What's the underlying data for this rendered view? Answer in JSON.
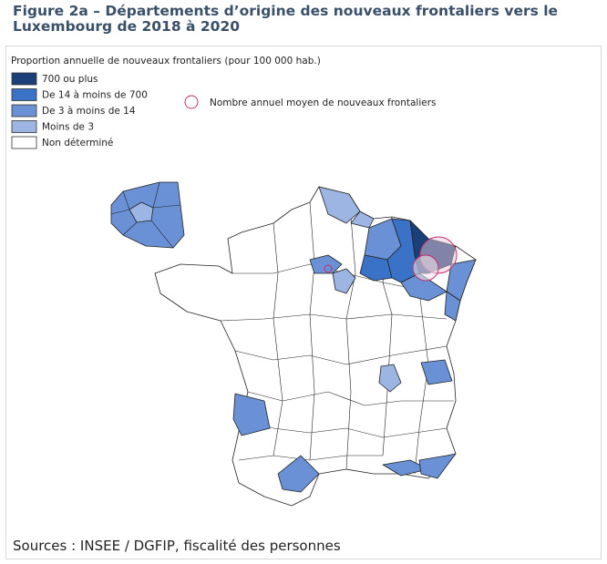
{
  "header": {
    "title": "Figure 2a – Départements d’origine des nouveaux frontaliers vers le Luxembourg de 2018 à 2020"
  },
  "legend": {
    "title": "Proportion annuelle de nouveaux frontaliers (pour 100 000 hab.)",
    "items": [
      {
        "label": "700 ou plus",
        "color": "#1b3f78"
      },
      {
        "label": "De 14 à moins de 700",
        "color": "#3a72c8"
      },
      {
        "label": "De 3 à moins de 14",
        "color": "#6a91d6"
      },
      {
        "label": "Moins de 3",
        "color": "#9cb5e2"
      },
      {
        "label": "Non déterminé",
        "color": "#ffffff"
      }
    ],
    "circle_label": "Nombre annuel moyen de nouveaux frontaliers"
  },
  "footer": {
    "source": "Sources : INSEE  / DGFIP, fiscalité des personnes"
  }
}
